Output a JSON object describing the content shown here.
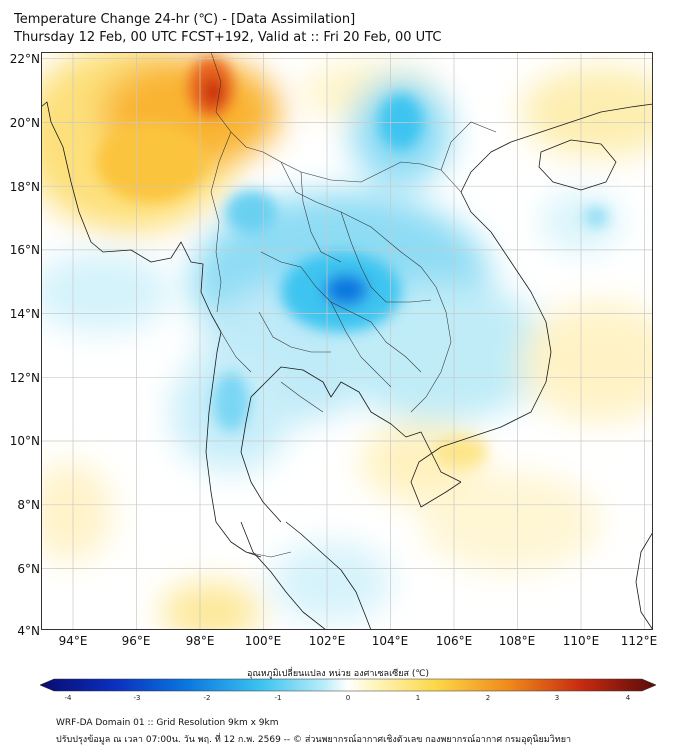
{
  "title": {
    "line1": "Temperature Change 24-hr (℃) - [Data Assimilation]",
    "line2": "Thursday 12 Feb, 00 UTC FCST+192, Valid at :: Fri 20 Feb, 00 UTC"
  },
  "axes": {
    "lat_labels": [
      "22°N",
      "20°N",
      "18°N",
      "16°N",
      "14°N",
      "12°N",
      "10°N",
      "8°N",
      "6°N",
      "4°N"
    ],
    "lon_labels": [
      "94°E",
      "96°E",
      "98°E",
      "100°E",
      "102°E",
      "104°E",
      "106°E",
      "108°E",
      "110°E",
      "112°E"
    ]
  },
  "colorbar": {
    "title": "อุณหภูมิเปลี่ยนแปลง หน่วย องศาเซลเซียส (℃)",
    "ticks": [
      "-4",
      "-3",
      "-2",
      "-1",
      "0",
      "1",
      "2",
      "3",
      "4"
    ],
    "range": [
      -4,
      4
    ]
  },
  "footer": {
    "line1": "WRF-DA Domain 01 :: Grid Resolution 9km x 9km",
    "line2": "ปรับปรุงข้อมูล ณ เวลา 07:00น. วัน พฤ. ที่ 12 ก.พ. 2569 -- © ส่วนพยากรณ์อากาศเชิงตัวเลข กองพยากรณ์อากาศ กรมอุตุนิยมวิทยา"
  },
  "colors": {
    "warm_dark": "#c62a10",
    "warm_mid": "#f08a1a",
    "warm_light": "#fcd94a",
    "neutral": "#ffffff",
    "cool_light": "#b8ecf8",
    "cool_mid": "#3cc4f0",
    "cool_dark": "#0a78e0"
  }
}
